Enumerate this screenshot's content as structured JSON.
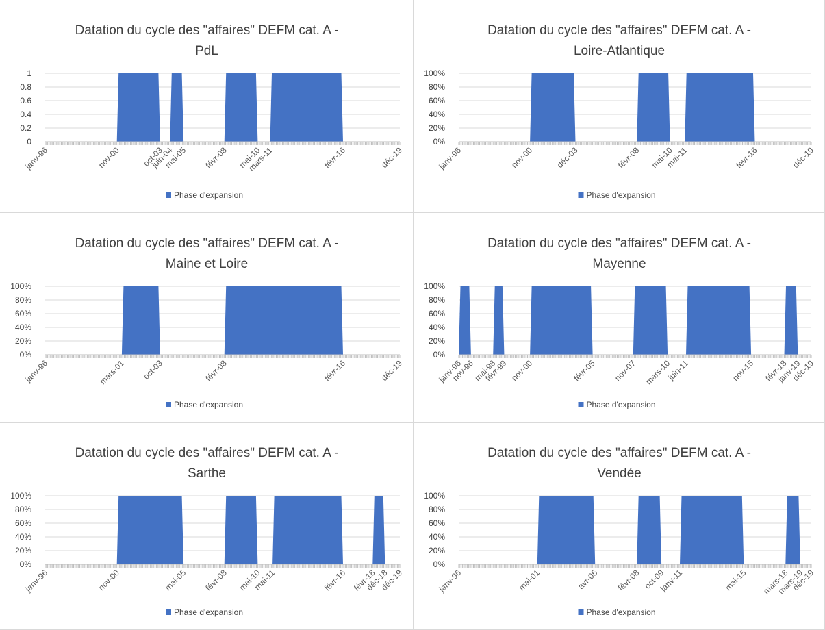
{
  "chart_data": [
    {
      "type": "area",
      "title": [
        "Datation du cycle des \"affaires\" DEFM cat. A -",
        "PdL"
      ],
      "y_tick_labels": [
        "0",
        "0.2",
        "0.4",
        "0.6",
        "0.8",
        "1"
      ],
      "ylim": [
        0,
        1
      ],
      "x_tick_labels": [
        {
          "label": "janv-96",
          "t": 0
        },
        {
          "label": "nov-00",
          "t": 58
        },
        {
          "label": "oct-03",
          "t": 93
        },
        {
          "label": "juin-04",
          "t": 101
        },
        {
          "label": "mai-05",
          "t": 112
        },
        {
          "label": "févr-08",
          "t": 145
        },
        {
          "label": "mai-10",
          "t": 172
        },
        {
          "label": "mars-11",
          "t": 182
        },
        {
          "label": "févr-16",
          "t": 241
        },
        {
          "label": "déc-19",
          "t": 287
        }
      ],
      "series": [
        {
          "name": "Phase d'expansion",
          "color": "#4472C4",
          "expansion_periods": [
            [
              "nov-00",
              "oct-03"
            ],
            [
              "juin-04",
              "mai-05"
            ],
            [
              "févr-08",
              "mai-10"
            ],
            [
              "mars-11",
              "févr-16"
            ]
          ]
        }
      ],
      "x_start": "janv-96",
      "x_end": "déc-19",
      "legend_position": "bottom",
      "grid": true
    },
    {
      "type": "area",
      "title": [
        "Datation du cycle des \"affaires\" DEFM cat. A -",
        "Loire-Atlantique"
      ],
      "y_tick_labels": [
        "0%",
        "20%",
        "40%",
        "60%",
        "80%",
        "100%"
      ],
      "ylim": [
        0,
        1
      ],
      "x_tick_labels": [
        {
          "label": "janv-96",
          "t": 0
        },
        {
          "label": "nov-00",
          "t": 58
        },
        {
          "label": "déc-03",
          "t": 95
        },
        {
          "label": "févr-08",
          "t": 145
        },
        {
          "label": "mai-10",
          "t": 172
        },
        {
          "label": "mai-11",
          "t": 184
        },
        {
          "label": "févr-16",
          "t": 241
        },
        {
          "label": "déc-19",
          "t": 287
        }
      ],
      "series": [
        {
          "name": "Phase d'expansion",
          "color": "#4472C4",
          "expansion_periods": [
            [
              "nov-00",
              "déc-03"
            ],
            [
              "févr-08",
              "mai-10"
            ],
            [
              "mai-11",
              "févr-16"
            ]
          ]
        }
      ],
      "x_start": "janv-96",
      "x_end": "déc-19",
      "legend_position": "bottom",
      "grid": true
    },
    {
      "type": "area",
      "title": [
        "Datation du cycle des \"affaires\" DEFM cat. A  -",
        "Maine et Loire"
      ],
      "y_tick_labels": [
        "0%",
        "20%",
        "40%",
        "60%",
        "80%",
        "100%"
      ],
      "ylim": [
        0,
        1
      ],
      "x_tick_labels": [
        {
          "label": "janv-96",
          "t": 0
        },
        {
          "label": "mars-01",
          "t": 62
        },
        {
          "label": "oct-03",
          "t": 93
        },
        {
          "label": "févr-08",
          "t": 145
        },
        {
          "label": "févr-16",
          "t": 241
        },
        {
          "label": "déc-19",
          "t": 287
        }
      ],
      "series": [
        {
          "name": "Phase d'expansion",
          "color": "#4472C4",
          "expansion_periods": [
            [
              "mars-01",
              "oct-03"
            ],
            [
              "févr-08",
              "févr-16"
            ]
          ]
        }
      ],
      "x_start": "janv-96",
      "x_end": "déc-19",
      "legend_position": "bottom",
      "grid": true
    },
    {
      "type": "area",
      "title": [
        "Datation du cycle des \"affaires\" DEFM cat. A  -",
        "Mayenne"
      ],
      "y_tick_labels": [
        "0%",
        "20%",
        "40%",
        "60%",
        "80%",
        "100%"
      ],
      "ylim": [
        0,
        1
      ],
      "x_tick_labels": [
        {
          "label": "janv-96",
          "t": 0
        },
        {
          "label": "nov-96",
          "t": 10
        },
        {
          "label": "mai-98",
          "t": 28
        },
        {
          "label": "févr-99",
          "t": 37
        },
        {
          "label": "nov-00",
          "t": 58
        },
        {
          "label": "févr-05",
          "t": 109
        },
        {
          "label": "nov-07",
          "t": 142
        },
        {
          "label": "mars-10",
          "t": 170
        },
        {
          "label": "juin-11",
          "t": 185
        },
        {
          "label": "nov-15",
          "t": 238
        },
        {
          "label": "févr-18",
          "t": 265
        },
        {
          "label": "janv-19",
          "t": 276
        },
        {
          "label": "déc-19",
          "t": 287
        }
      ],
      "series": [
        {
          "name": "Phase d'expansion",
          "color": "#4472C4",
          "expansion_periods": [
            [
              "janv-96",
              "nov-96"
            ],
            [
              "mai-98",
              "févr-99"
            ],
            [
              "nov-00",
              "févr-05"
            ],
            [
              "nov-07",
              "mars-10"
            ],
            [
              "juin-11",
              "nov-15"
            ],
            [
              "févr-18",
              "janv-19"
            ]
          ]
        }
      ],
      "x_start": "janv-96",
      "x_end": "déc-19",
      "legend_position": "bottom",
      "grid": true
    },
    {
      "type": "area",
      "title": [
        "Datation du cycle des \"affaires\" DEFM cat. A  -",
        "Sarthe"
      ],
      "y_tick_labels": [
        "0%",
        "20%",
        "40%",
        "60%",
        "80%",
        "100%"
      ],
      "ylim": [
        0,
        1
      ],
      "x_tick_labels": [
        {
          "label": "janv-96",
          "t": 0
        },
        {
          "label": "nov-00",
          "t": 58
        },
        {
          "label": "mai-05",
          "t": 112
        },
        {
          "label": "févr-08",
          "t": 145
        },
        {
          "label": "mai-10",
          "t": 172
        },
        {
          "label": "mai-11",
          "t": 184
        },
        {
          "label": "févr-16",
          "t": 241
        },
        {
          "label": "févr-18",
          "t": 265
        },
        {
          "label": "déc-18",
          "t": 275
        },
        {
          "label": "déc-19",
          "t": 287
        }
      ],
      "series": [
        {
          "name": "Phase d'expansion",
          "color": "#4472C4",
          "expansion_periods": [
            [
              "nov-00",
              "mai-05"
            ],
            [
              "févr-08",
              "mai-10"
            ],
            [
              "mai-11",
              "févr-16"
            ],
            [
              "févr-18",
              "déc-18"
            ]
          ]
        }
      ],
      "x_start": "janv-96",
      "x_end": "déc-19",
      "legend_position": "bottom",
      "grid": true
    },
    {
      "type": "area",
      "title": [
        "Datation du cycle des \"affaires\" DEFM cat. A -",
        "Vendée"
      ],
      "y_tick_labels": [
        "0%",
        "20%",
        "40%",
        "60%",
        "80%",
        "100%"
      ],
      "ylim": [
        0,
        1
      ],
      "x_tick_labels": [
        {
          "label": "janv-96",
          "t": 0
        },
        {
          "label": "mai-01",
          "t": 64
        },
        {
          "label": "avr-05",
          "t": 111
        },
        {
          "label": "févr-08",
          "t": 145
        },
        {
          "label": "oct-09",
          "t": 165
        },
        {
          "label": "janv-11",
          "t": 180
        },
        {
          "label": "mai-15",
          "t": 232
        },
        {
          "label": "mars-18",
          "t": 266
        },
        {
          "label": "mars-19",
          "t": 278
        },
        {
          "label": "déc-19",
          "t": 287
        }
      ],
      "series": [
        {
          "name": "Phase d'expansion",
          "color": "#4472C4",
          "expansion_periods": [
            [
              "mai-01",
              "avr-05"
            ],
            [
              "févr-08",
              "oct-09"
            ],
            [
              "janv-11",
              "mai-15"
            ],
            [
              "mars-18",
              "mars-19"
            ]
          ]
        }
      ],
      "x_start": "janv-96",
      "x_end": "déc-19",
      "legend_position": "bottom",
      "grid": true
    }
  ]
}
